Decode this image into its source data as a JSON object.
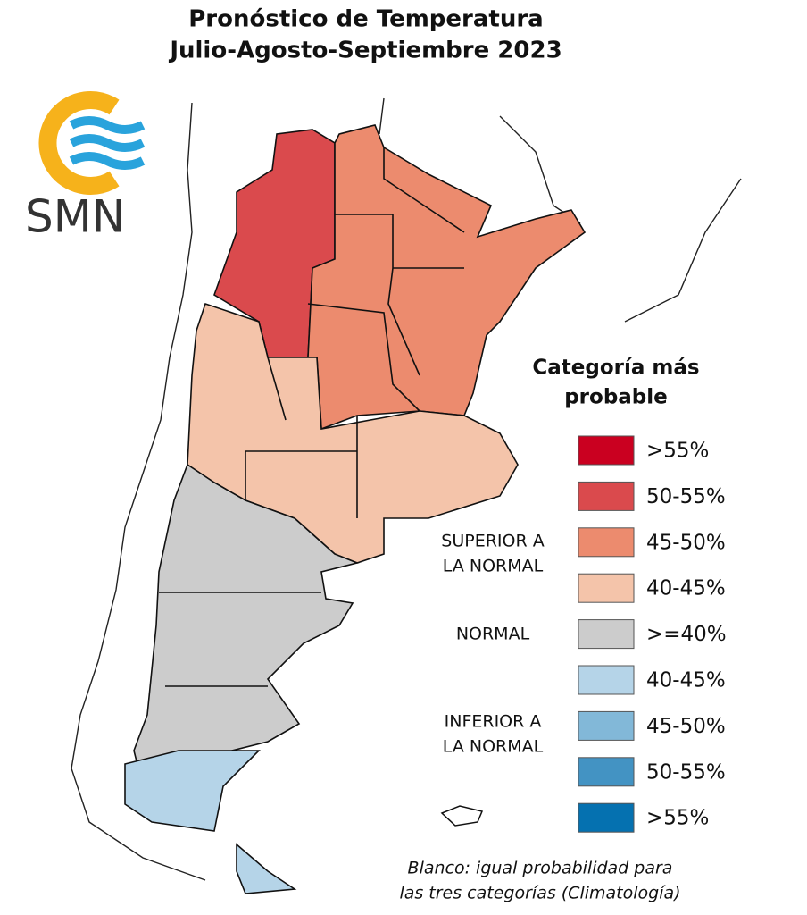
{
  "title": [
    "Pronóstico de Temperatura",
    "Julio-Agosto-Septiembre 2023"
  ],
  "logo": "SMN",
  "legend": {
    "title": [
      "Categoría más",
      "probable"
    ],
    "items": [
      {
        "label": ">55%",
        "color": "#ca0020"
      },
      {
        "label": "50-55%",
        "color": "#da4a4d"
      },
      {
        "label": "45-50%",
        "color": "#ec8b6e"
      },
      {
        "label": "40-45%",
        "color": "#f4c4aa"
      },
      {
        "label": ">=40%",
        "color": "#cccccc"
      },
      {
        "label": "40-45%",
        "color": "#b5d4e8"
      },
      {
        "label": "45-50%",
        "color": "#82b8d8"
      },
      {
        "label": "50-55%",
        "color": "#4393c3"
      },
      {
        "label": ">55%",
        "color": "#0571b0"
      }
    ],
    "groups": [
      {
        "label": [
          "SUPERIOR A",
          "LA NORMAL"
        ]
      },
      {
        "label": [
          "NORMAL"
        ]
      },
      {
        "label": [
          "INFERIOR A",
          "LA NORMAL"
        ]
      }
    ]
  },
  "note": [
    "Blanco: igual probabilidad para",
    "las tres categorías (Climatología)"
  ]
}
